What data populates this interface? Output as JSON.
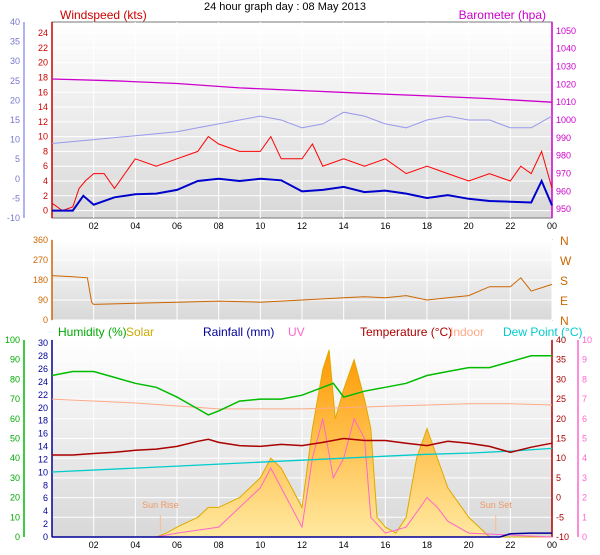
{
  "title": "24 hour graph day : 08 May 2013",
  "colors": {
    "wind": "#ff0000",
    "windavg": "#0000cc",
    "baro": "#cc00cc",
    "temp_feel": "#9999ee",
    "dir": "#cc6600",
    "humidity": "#00bb00",
    "solar": "#ddaa00",
    "rain": "#000099",
    "uv": "#ff66cc",
    "temperature": "#aa0000",
    "indoor": "#ffaa88",
    "dewpoint": "#00cccc"
  },
  "chart_data": [
    {
      "type": "line",
      "name": "wind-panel",
      "labels": {
        "left": "Windspeed (kts)",
        "right": "Barometer (hpa)"
      },
      "x_ticks": [
        "02",
        "04",
        "06",
        "08",
        "10",
        "12",
        "14",
        "16",
        "18",
        "20",
        "22",
        "00"
      ],
      "y_left_ticks": [
        0,
        2,
        4,
        6,
        8,
        10,
        12,
        14,
        16,
        18,
        20,
        22,
        24
      ],
      "y_outer_ticks": [
        -10,
        -5,
        0,
        5,
        10,
        15,
        20,
        25,
        30,
        35,
        40
      ],
      "y_right_ticks": [
        950,
        960,
        970,
        980,
        990,
        1000,
        1010,
        1020,
        1030,
        1040,
        1050
      ],
      "ylim_left": [
        -1,
        25.5
      ],
      "ylim_right": [
        945,
        1055
      ],
      "ylim_outer": [
        -10,
        40
      ],
      "xlim": [
        0,
        24
      ],
      "series": [
        {
          "key": "wind_gust",
          "axis": "left",
          "x": [
            0,
            0.5,
            1,
            1.3,
            1.6,
            2,
            2.5,
            3,
            4,
            5,
            6,
            7,
            7.5,
            8,
            9,
            10,
            10.5,
            11,
            12,
            12.5,
            13,
            14,
            15,
            16,
            17,
            18,
            19,
            20,
            21,
            22,
            22.5,
            23,
            23.5,
            24
          ],
          "y": [
            1,
            0,
            0.5,
            3,
            4,
            5,
            5,
            3,
            7,
            6,
            7,
            8,
            10,
            9,
            8,
            8,
            10,
            7,
            7,
            9,
            6,
            7,
            6,
            7,
            5,
            6,
            5,
            4,
            5,
            4,
            6,
            5,
            8,
            3
          ]
        },
        {
          "key": "wind_avg",
          "axis": "left",
          "x": [
            0,
            1,
            1.5,
            2,
            3,
            4,
            5,
            6,
            7,
            8,
            9,
            10,
            11,
            12,
            13,
            14,
            15,
            16,
            17,
            18,
            19,
            20,
            21,
            22,
            23,
            23.5,
            24
          ],
          "y": [
            0,
            0,
            2,
            0.8,
            1.8,
            2.2,
            2.3,
            2.8,
            4,
            4.3,
            4,
            4.3,
            4.1,
            2.6,
            2.8,
            3.2,
            2.5,
            2.7,
            2.3,
            1.7,
            2.1,
            1.6,
            1.3,
            1.2,
            1.1,
            4,
            0.7
          ]
        },
        {
          "key": "feels_like",
          "axis": "outer",
          "x": [
            0,
            2,
            4,
            6,
            7,
            8,
            9,
            10,
            11,
            12,
            13,
            14,
            15,
            16,
            17,
            18,
            19,
            20,
            21,
            22,
            23,
            24
          ],
          "y": [
            9,
            10,
            11,
            12,
            13,
            14,
            15,
            16,
            15,
            13,
            14,
            17,
            16,
            14,
            13,
            15,
            16,
            15,
            15,
            13,
            13,
            16
          ]
        },
        {
          "key": "barometer",
          "axis": "right",
          "x": [
            0,
            3,
            6,
            9,
            12,
            15,
            18,
            21,
            24
          ],
          "y": [
            1023,
            1022,
            1020.5,
            1018,
            1016.5,
            1015,
            1013.5,
            1012,
            1010
          ]
        }
      ]
    },
    {
      "type": "line",
      "name": "direction-panel",
      "y_left_ticks": [
        0,
        90,
        180,
        270,
        360
      ],
      "y_right_ticks": [
        "N",
        "E",
        "S",
        "W",
        "N"
      ],
      "ylim": [
        0,
        360
      ],
      "xlim": [
        0,
        24
      ],
      "series": [
        {
          "key": "direction",
          "x": [
            0,
            1,
            1.7,
            1.9,
            2,
            4,
            6,
            8,
            10,
            12,
            13,
            14,
            15,
            16,
            17,
            18,
            19,
            20,
            21,
            22,
            22.5,
            23,
            24
          ],
          "y": [
            200,
            195,
            190,
            80,
            70,
            75,
            80,
            85,
            80,
            90,
            95,
            100,
            105,
            100,
            110,
            90,
            100,
            110,
            150,
            150,
            190,
            130,
            160
          ]
        }
      ]
    },
    {
      "type": "line",
      "name": "conditions-panel",
      "labels": {
        "humidity": "Humidity (%)",
        "solar": "Solar",
        "rain": "Rainfall (mm)",
        "uv": "UV",
        "temperature": "Temperature (°C)",
        "indoor": "Indoor",
        "dewpoint": "Dew Point (°C)",
        "sunrise": "Sun Rise",
        "sunset": "Sun Set"
      },
      "x_ticks": [
        "02",
        "04",
        "06",
        "08",
        "10",
        "12",
        "14",
        "16",
        "18",
        "20",
        "22",
        "00"
      ],
      "y_humidity_ticks": [
        0,
        10,
        20,
        30,
        40,
        50,
        60,
        70,
        80,
        90,
        100
      ],
      "y_rain_ticks": [
        0,
        2,
        4,
        6,
        8,
        10,
        12,
        14,
        16,
        18,
        20,
        22,
        24,
        26,
        28,
        30
      ],
      "y_temp_ticks": [
        -10,
        -5,
        0,
        5,
        10,
        15,
        20,
        25,
        30,
        35,
        40
      ],
      "y_uv_ticks": [
        0,
        1,
        2,
        3,
        4,
        5,
        6,
        7,
        8,
        9,
        10
      ],
      "ylim_humidity": [
        0,
        100
      ],
      "ylim_temp": [
        -10,
        40
      ],
      "ylim_uv": [
        0,
        10
      ],
      "ylim_rain": [
        0,
        30.5
      ],
      "xlim": [
        0,
        24
      ],
      "sunrise_x": 5.2,
      "sunset_x": 21.3,
      "series": [
        {
          "key": "humidity",
          "axis": "humidity",
          "x": [
            0,
            1,
            2,
            3,
            4,
            5,
            6,
            7,
            7.5,
            8,
            9,
            10,
            11,
            12,
            13,
            13.5,
            14,
            15,
            16,
            17,
            18,
            19,
            20,
            21,
            22,
            23,
            24
          ],
          "y": [
            82,
            84,
            84,
            81,
            78,
            76,
            71,
            65,
            62,
            64,
            69,
            70,
            70,
            72,
            76,
            78,
            71,
            74,
            76,
            78,
            82,
            84,
            86,
            86,
            89,
            92,
            92
          ]
        },
        {
          "key": "indoor",
          "axis": "temp",
          "x": [
            0,
            4,
            8,
            10,
            12,
            14,
            16,
            18,
            20,
            22,
            24
          ],
          "y": [
            25,
            24,
            22.5,
            22.5,
            22.5,
            22.8,
            23.2,
            23.5,
            23.8,
            23.8,
            23.5
          ]
        },
        {
          "key": "temperature",
          "axis": "temp",
          "x": [
            0,
            1,
            2,
            3,
            4,
            5,
            6,
            7,
            7.5,
            8,
            9,
            10,
            11,
            12,
            13,
            14,
            15,
            16,
            17,
            18,
            19,
            20,
            21,
            22,
            23,
            24
          ],
          "y": [
            10.8,
            10.8,
            11.2,
            11.5,
            12,
            12.3,
            13,
            14.3,
            14.8,
            14,
            13.2,
            13,
            13.5,
            13.2,
            14,
            15,
            14.5,
            14.5,
            13.8,
            13.2,
            14.3,
            13.8,
            13,
            11.5,
            12.8,
            13.8
          ]
        },
        {
          "key": "dewpoint",
          "axis": "temp",
          "x": [
            0,
            4,
            8,
            12,
            14,
            16,
            18,
            20,
            22,
            24
          ],
          "y": [
            6.5,
            7.5,
            8.5,
            9.5,
            10,
            10.5,
            11,
            11.3,
            11.8,
            12.5
          ]
        },
        {
          "key": "solar",
          "axis": "uv",
          "x": [
            0,
            5,
            5.5,
            6,
            7,
            7.5,
            8,
            9,
            10,
            10.5,
            11,
            12,
            12.5,
            13,
            13.3,
            13.6,
            14,
            14.5,
            15,
            15.3,
            15.6,
            16,
            16.5,
            17,
            17.5,
            18,
            18.5,
            19,
            20,
            21,
            24
          ],
          "y": [
            0,
            0,
            0.2,
            0.5,
            1,
            1.5,
            1.5,
            2,
            3,
            4,
            3.5,
            1.5,
            5.5,
            8.5,
            9.5,
            6,
            7.5,
            9,
            7,
            5.5,
            1,
            0.5,
            0.2,
            1,
            4,
            5.5,
            4,
            2.5,
            1,
            0,
            0
          ]
        },
        {
          "key": "uv",
          "axis": "uv",
          "x": [
            0,
            5,
            6,
            8,
            10,
            10.5,
            12,
            12.5,
            13,
            13.5,
            14,
            14.5,
            15,
            15.3,
            16,
            17,
            18,
            18.5,
            19,
            20,
            24
          ],
          "y": [
            0,
            0,
            0.2,
            0.5,
            2.5,
            3.5,
            0.5,
            4,
            6,
            3,
            4,
            6,
            5,
            1,
            0.2,
            0.5,
            2,
            1.5,
            0.8,
            0.2,
            0
          ]
        },
        {
          "key": "rain",
          "axis": "rain",
          "x": [
            0,
            21.5,
            22,
            23,
            24
          ],
          "y": [
            0,
            0,
            0.5,
            0.6,
            0.6
          ]
        }
      ]
    }
  ]
}
